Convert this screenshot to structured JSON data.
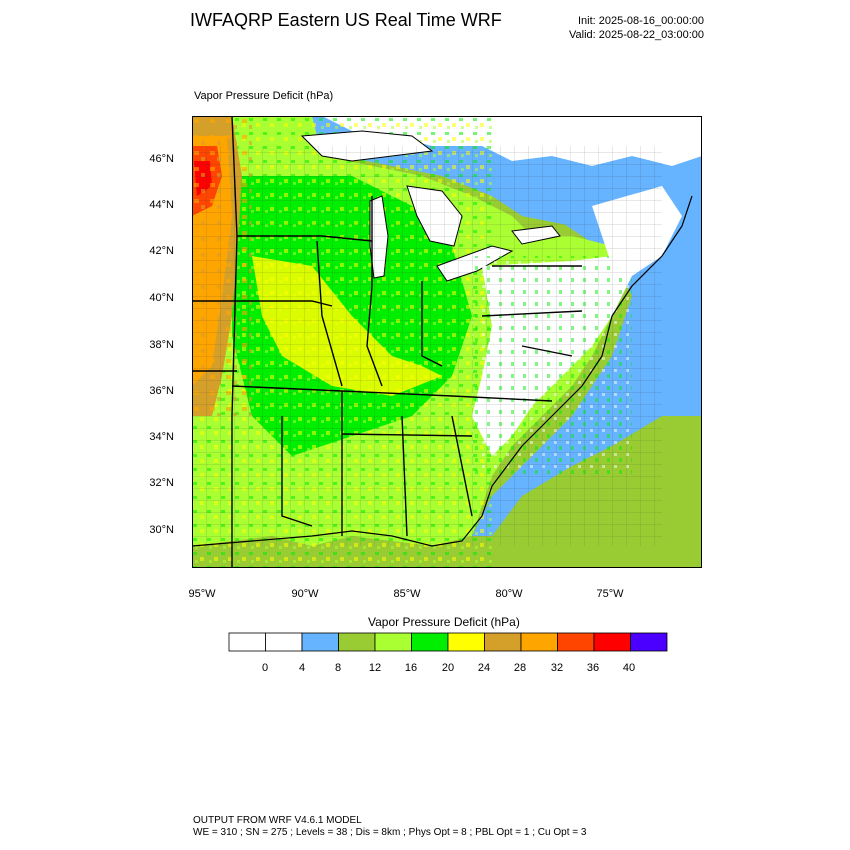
{
  "header": {
    "title": "IWFAQRP Eastern US Real Time WRF",
    "init": "Init: 2025-08-16_00:00:00",
    "valid": "Valid: 2025-08-22_03:00:00"
  },
  "field_label": "Vapor Pressure Deficit   (hPa)",
  "lat_ticks": [
    "46°N",
    "44°N",
    "42°N",
    "40°N",
    "38°N",
    "36°N",
    "34°N",
    "32°N",
    "30°N"
  ],
  "lon_ticks": [
    "95°W",
    "90°W",
    "85°W",
    "80°W",
    "75°W"
  ],
  "colorbar": {
    "title": "Vapor Pressure Deficit  (hPa)",
    "labels": [
      "0",
      "4",
      "8",
      "12",
      "16",
      "20",
      "24",
      "28",
      "32",
      "36",
      "40"
    ],
    "colors": [
      "#ffffff",
      "#ffffff",
      "#66b3ff",
      "#99cc33",
      "#aaff33",
      "#00ee00",
      "#ffff00",
      "#d4a02a",
      "#ffa500",
      "#ff4500",
      "#ff0000",
      "#4b00ff"
    ]
  },
  "map_colors": {
    "ocean_low": "#99cc33",
    "lake": "#ffffff",
    "coast_blue": "#66b3ff",
    "green": "#00ee00",
    "lime": "#aaff33",
    "yellow": "#ffff00",
    "orange": "#ffa500",
    "tan": "#d4a02a",
    "red_orange": "#ff4500",
    "red": "#ff0000"
  },
  "footer": {
    "line1": "OUTPUT FROM WRF V4.6.1 MODEL",
    "line2": "WE = 310 ; SN = 275 ; Levels = 38 ; Dis = 8km ; Phys Opt = 8 ; PBL Opt = 1 ; Cu Opt = 3"
  }
}
